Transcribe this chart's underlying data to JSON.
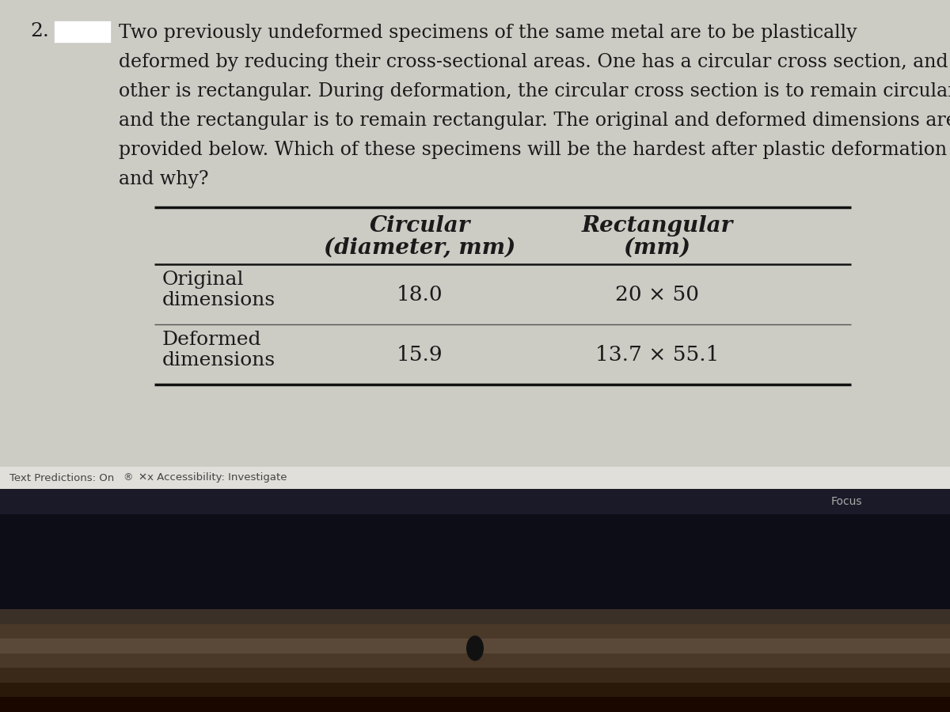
{
  "question_number": "2.",
  "highlight_box_color": "#ffffff",
  "question_text_lines": [
    "Two previously undeformed specimens of the same metal are to be plastically",
    "deformed by reducing their cross-sectional areas. One has a circular cross section, and the",
    "other is rectangular. During deformation, the circular cross section is to remain circular",
    "and the rectangular is to remain rectangular. The original and deformed dimensions are",
    "provided below. Which of these specimens will be the hardest after plastic deformation",
    "and why?"
  ],
  "col_header1_line1": "Circular",
  "col_header1_line2": "(diameter, mm)",
  "col_header2_line1": "Rectangular",
  "col_header2_line2": "(mm)",
  "row_header1_line1": "Original",
  "row_header1_line2": "dimensions",
  "row_header2_line1": "Deformed",
  "row_header2_line2": "dimensions",
  "data": [
    [
      "18.0",
      "20 × 50"
    ],
    [
      "15.9",
      "13.7 × 55.1"
    ]
  ],
  "bg_color": "#cccbc4",
  "text_color": "#1a1a1a",
  "status_bar_bg": "#e0dfda",
  "status_bar_text": "Text Predictions: On",
  "status_bar_icon_text": "®",
  "accessibility_text": "Accessibility: Investigate",
  "taskbar_bg": "#1a1a28",
  "taskbar_text_color": "#aaaaaa",
  "focus_text": "Focus",
  "bezel_color_top": "#4a3828",
  "bezel_color_mid": "#3a2818",
  "hp_logo_color": "#111111",
  "table_line_color": "#111111",
  "table_thin_line_color": "#555555"
}
